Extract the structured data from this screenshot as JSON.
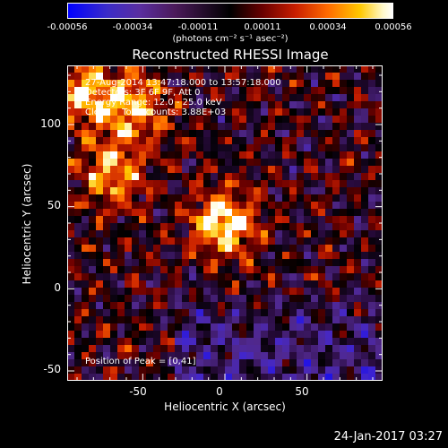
{
  "colorbar": {
    "ticks": [
      "-0.00056",
      "-0.00034",
      "-0.00011",
      "0.00011",
      "0.00034",
      "0.00056"
    ],
    "unit_label": "(photons cm⁻² s⁻¹ asec⁻²)"
  },
  "chart_data": {
    "type": "heatmap",
    "title": "Reconstructed RHESSI Image",
    "xlabel": "Heliocentric X (arcsec)",
    "ylabel": "Heliocentric Y (arcsec)",
    "xlim": [
      -96,
      96
    ],
    "ylim": [
      -56,
      136
    ],
    "x_ticks": [
      "-50",
      "0",
      "50"
    ],
    "y_ticks": [
      "-50",
      "0",
      "50",
      "100"
    ],
    "color_range": [
      -0.00056,
      0.00056
    ],
    "peak_position": [
      0,
      41
    ],
    "bright_regions": [
      {
        "x": 0,
        "y": 41,
        "intensity": 0.00056
      },
      {
        "x": -70,
        "y": 70,
        "intensity": 0.00042
      },
      {
        "x": -55,
        "y": 110,
        "intensity": 0.0004
      },
      {
        "x": -85,
        "y": 120,
        "intensity": 0.00045
      }
    ],
    "annotations": [
      "27-Aug-2014 13:47:18.000 to 13:57:18.000",
      "Detectors: 3F 6F 9F, Att 0",
      "Energy Range: 12.0 - 25.0 keV",
      "Clean    Total counts: 3.88E+03"
    ],
    "peak_label": "Position of Peak = [0,41]"
  },
  "footer": {
    "timestamp": "24-Jan-2017 03:27"
  }
}
